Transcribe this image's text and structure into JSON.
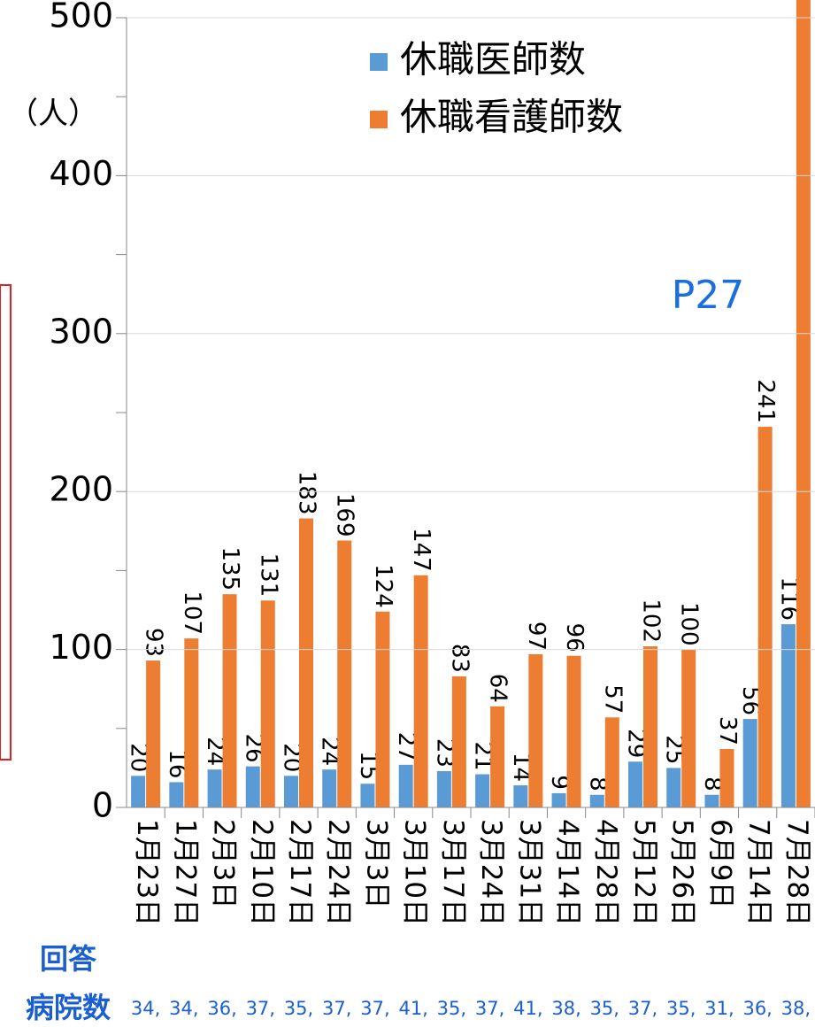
{
  "chart_data": {
    "type": "bar",
    "y_label": "（人）",
    "annotation": "P27",
    "hospital_label": [
      "回答",
      "病院数"
    ],
    "categories": [
      "1月23日",
      "1月27日",
      "2月3日",
      "2月10日",
      "2月17日",
      "2月24日",
      "3月3日",
      "3月10日",
      "3月17日",
      "3月24日",
      "3月31日",
      "4月14日",
      "4月28日",
      "5月12日",
      "5月26日",
      "6月9日",
      "7月14日",
      "7月28日"
    ],
    "series": [
      {
        "name": "休職医師数",
        "color": "#5b9bd5",
        "values": [
          20,
          16,
          24,
          26,
          20,
          24,
          15,
          27,
          23,
          21,
          14,
          9,
          8,
          29,
          25,
          8,
          56,
          116
        ]
      },
      {
        "name": "休職看護師数",
        "color": "#ed7d31",
        "values": [
          93,
          107,
          135,
          131,
          183,
          169,
          124,
          147,
          83,
          64,
          97,
          96,
          57,
          102,
          100,
          37,
          241,
          514
        ]
      }
    ],
    "hospital_counts": [
      "34,",
      "34,",
      "36,",
      "37,",
      "35,",
      "37,",
      "37,",
      "41,",
      "35,",
      "37,",
      "41,",
      "38,",
      "35,",
      "37,",
      "35,",
      "31,",
      "36,",
      "38,"
    ],
    "ylim": [
      0,
      500
    ],
    "yticks": [
      0,
      100,
      200,
      300,
      400,
      500
    ],
    "grid": true,
    "legend": "top-right"
  }
}
